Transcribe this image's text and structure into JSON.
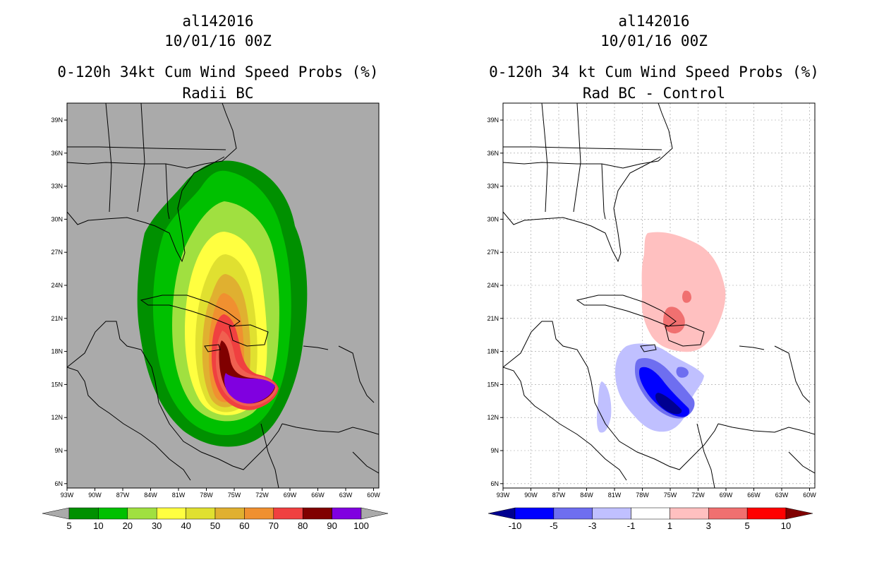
{
  "left_panel": {
    "storm_id": "al142016",
    "date": "10/01/16 00Z",
    "title": "0-120h 34kt Cum Wind Speed Probs (%)",
    "subtitle": "Radii BC",
    "colorbar": {
      "labels": [
        "5",
        "10",
        "20",
        "30",
        "40",
        "50",
        "60",
        "70",
        "80",
        "90",
        "100"
      ],
      "colors": [
        "#009000",
        "#00c000",
        "#a0e040",
        "#ffff40",
        "#e0e030",
        "#e0b030",
        "#f09030",
        "#f04040",
        "#800000",
        "#8000e0"
      ],
      "under_color": "#aaaaaa",
      "over_color": "#aaaaaa"
    },
    "background": "#aaaaaa"
  },
  "right_panel": {
    "storm_id": "al142016",
    "date": "10/01/16 00Z",
    "title": "0-120h 34 kt Cum Wind Speed Probs (%)",
    "subtitle": "Rad BC - Control",
    "colorbar": {
      "labels": [
        "-10",
        "-5",
        "-3",
        "-1",
        "1",
        "3",
        "5",
        "10"
      ],
      "colors": [
        "#0000ff",
        "#6e6ef0",
        "#c0c0ff",
        "#ffffff",
        "#ffc0c0",
        "#f07070",
        "#ff0000"
      ],
      "under_color": "#000090",
      "over_color": "#800000"
    },
    "background": "#ffffff"
  },
  "axes": {
    "lon_labels": [
      "93W",
      "90W",
      "87W",
      "84W",
      "81W",
      "78W",
      "75W",
      "72W",
      "69W",
      "66W",
      "63W",
      "60W"
    ],
    "lat_labels": [
      "39N",
      "36N",
      "33N",
      "30N",
      "27N",
      "24N",
      "21N",
      "18N",
      "15N",
      "12N",
      "9N",
      "6N"
    ]
  },
  "colors": {
    "coast": "#000000",
    "grid": "#888888"
  }
}
